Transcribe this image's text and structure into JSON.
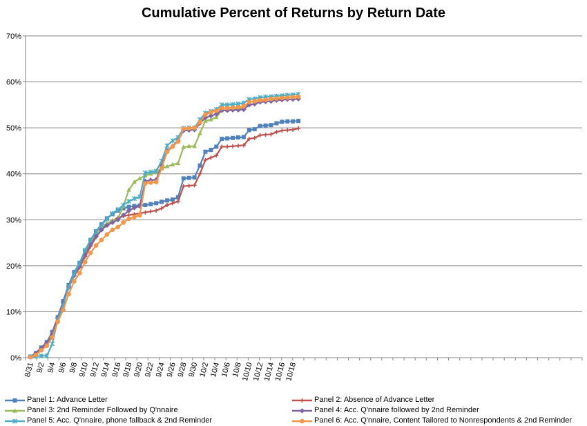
{
  "chart_data": {
    "type": "line",
    "title": "Cumulative Percent of Returns by Return Date",
    "xlabel": "",
    "ylabel": "",
    "ylim": [
      0,
      70
    ],
    "yticks": [
      "0%",
      "10%",
      "20%",
      "30%",
      "40%",
      "50%",
      "60%",
      "70%"
    ],
    "x": [
      "8/31",
      "9/1",
      "9/2",
      "9/3",
      "9/4",
      "9/5",
      "9/6",
      "9/7",
      "9/8",
      "9/9",
      "9/10",
      "9/11",
      "9/12",
      "9/13",
      "9/14",
      "9/15",
      "9/16",
      "9/17",
      "9/18",
      "9/19",
      "9/20",
      "9/21",
      "9/22",
      "9/23",
      "9/24",
      "9/25",
      "9/26",
      "9/27",
      "9/28",
      "9/29",
      "9/30",
      "10/1",
      "10/2",
      "10/3",
      "10/4",
      "10/5",
      "10/6",
      "10/7",
      "10/8",
      "10/9",
      "10/10",
      "10/11",
      "10/12",
      "10/13",
      "10/14",
      "10/15",
      "10/16",
      "10/17",
      "10/18",
      "10/19"
    ],
    "xtick_labels": [
      "8/31",
      "9/2",
      "9/4",
      "9/6",
      "9/8",
      "9/10",
      "9/12",
      "9/14",
      "9/16",
      "9/18",
      "9/20",
      "9/22",
      "9/24",
      "9/26",
      "9/28",
      "9/30",
      "10/2",
      "10/4",
      "10/6",
      "10/8",
      "10/10",
      "10/12",
      "10/14",
      "10/16",
      "10/18"
    ],
    "grid": "horizontal",
    "legend_position": "bottom",
    "series": [
      {
        "name": "Panel 1: Advance Letter",
        "color": "#4F81BD",
        "marker": "square",
        "values": [
          0.2,
          1.0,
          2.2,
          3.4,
          5.6,
          8.8,
          12.3,
          15.8,
          18.6,
          20.6,
          23.2,
          25.6,
          27.5,
          29.0,
          30.3,
          31.2,
          32.0,
          32.5,
          32.8,
          33.0,
          33.1,
          33.2,
          33.4,
          33.6,
          33.9,
          34.2,
          34.4,
          34.9,
          39.0,
          39.1,
          39.2,
          41.8,
          44.8,
          45.2,
          45.9,
          47.6,
          47.7,
          47.8,
          47.9,
          48.0,
          49.5,
          49.7,
          50.4,
          50.5,
          50.6,
          51.0,
          51.3,
          51.4,
          51.4,
          51.5
        ]
      },
      {
        "name": "Panel 2: Absence of Advance Letter",
        "color": "#C0504D",
        "marker": "plus",
        "values": [
          0.2,
          0.8,
          2.0,
          3.0,
          5.2,
          8.5,
          11.8,
          15.2,
          17.8,
          19.6,
          22.0,
          24.2,
          26.2,
          27.8,
          29.0,
          29.8,
          30.4,
          30.8,
          31.0,
          31.2,
          31.4,
          31.6,
          31.8,
          32.0,
          32.5,
          33.2,
          33.6,
          34.0,
          37.3,
          37.4,
          37.5,
          40.0,
          43.0,
          43.5,
          44.0,
          45.9,
          45.9,
          46.0,
          46.1,
          46.2,
          47.6,
          47.8,
          48.4,
          48.5,
          48.6,
          49.1,
          49.4,
          49.5,
          49.6,
          49.9
        ]
      },
      {
        "name": "Panel 3: 2nd Reminder Followed by Q'nnaire",
        "color": "#9BBB59",
        "marker": "triangle",
        "values": [
          0.2,
          0.8,
          2.0,
          3.2,
          5.2,
          8.4,
          11.8,
          15.2,
          18.0,
          20.0,
          22.6,
          25.0,
          27.0,
          28.4,
          29.2,
          29.8,
          30.2,
          33.0,
          36.5,
          38.2,
          39.0,
          39.6,
          40.0,
          40.3,
          41.2,
          41.6,
          42.0,
          42.3,
          45.8,
          46.0,
          46.0,
          48.8,
          51.5,
          51.8,
          52.3,
          53.8,
          53.9,
          54.0,
          54.1,
          54.4,
          55.6,
          55.8,
          56.1,
          56.1,
          56.2,
          56.3,
          56.5,
          56.6,
          56.7,
          56.8
        ]
      },
      {
        "name": "Panel 4: Acc. Q'nnaire followed by 2nd Reminder",
        "color": "#8064A2",
        "marker": "diamond",
        "values": [
          0.2,
          0.9,
          2.1,
          3.2,
          5.0,
          8.6,
          12.0,
          15.4,
          17.9,
          19.8,
          22.4,
          24.6,
          26.4,
          27.8,
          28.8,
          29.4,
          30.0,
          31.0,
          32.0,
          32.6,
          33.0,
          38.4,
          38.6,
          38.7,
          41.8,
          45.0,
          46.0,
          47.2,
          49.4,
          49.5,
          49.6,
          51.0,
          52.2,
          52.6,
          53.0,
          53.8,
          53.8,
          53.9,
          53.9,
          54.0,
          55.0,
          55.2,
          55.6,
          55.7,
          55.8,
          56.0,
          56.1,
          56.2,
          56.2,
          56.3
        ]
      },
      {
        "name": "Panel 5: Acc. Q'nnaire, phone fallback & 2nd Reminder",
        "color": "#4BACC6",
        "marker": "star",
        "values": [
          0.2,
          0.3,
          0.4,
          0.4,
          3.0,
          8.3,
          11.4,
          15.4,
          18.2,
          20.6,
          23.4,
          25.6,
          27.4,
          28.8,
          30.2,
          31.4,
          32.2,
          33.2,
          34.0,
          34.6,
          35.0,
          40.2,
          40.4,
          40.6,
          42.8,
          46.1,
          47.2,
          47.9,
          49.9,
          50.0,
          50.0,
          51.8,
          53.2,
          53.6,
          54.0,
          55.0,
          55.0,
          55.1,
          55.2,
          55.4,
          56.2,
          56.3,
          56.6,
          56.7,
          56.8,
          56.9,
          57.0,
          57.1,
          57.2,
          57.3
        ]
      },
      {
        "name": "Panel 6: Acc. Q'nnaire, Content Tailored to Nonrespondents & 2nd Reminder",
        "color": "#F79646",
        "marker": "circle",
        "values": [
          0.1,
          0.6,
          1.6,
          2.6,
          4.4,
          7.8,
          10.4,
          13.8,
          16.6,
          18.4,
          20.8,
          22.8,
          24.4,
          25.6,
          26.8,
          27.8,
          28.4,
          29.4,
          30.2,
          30.6,
          31.0,
          37.9,
          38.1,
          38.2,
          41.2,
          44.8,
          45.9,
          47.0,
          49.8,
          49.9,
          50.0,
          51.2,
          52.9,
          53.4,
          53.7,
          54.3,
          54.3,
          54.4,
          54.5,
          54.7,
          55.6,
          55.8,
          56.0,
          56.1,
          56.3,
          56.4,
          56.5,
          56.6,
          56.7,
          56.8
        ]
      }
    ]
  }
}
